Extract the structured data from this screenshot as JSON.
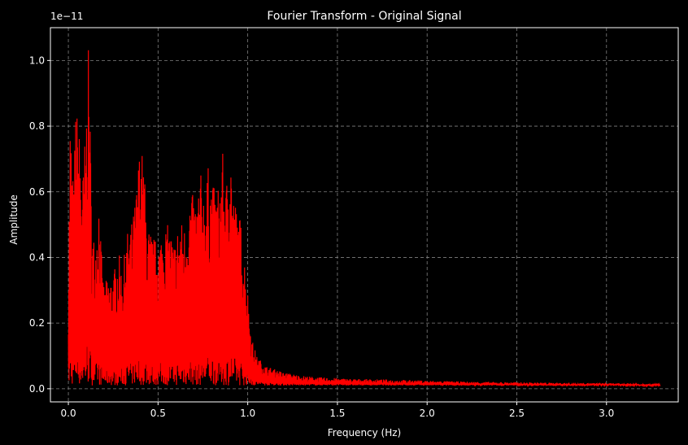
{
  "chart_data": {
    "type": "line",
    "title": "Fourier Transform - Original Signal",
    "xlabel": "Frequency (Hz)",
    "ylabel": "Amplitude",
    "y_scale_label": "1e−11",
    "xlim": [
      -0.1,
      3.4
    ],
    "ylim": [
      -0.04,
      1.1
    ],
    "y_multiplier": 1e-11,
    "x_ticks": [
      0.0,
      0.5,
      1.0,
      1.5,
      2.0,
      2.5,
      3.0
    ],
    "x_tick_labels": [
      "0.0",
      "0.5",
      "1.0",
      "1.5",
      "2.0",
      "2.5",
      "3.0"
    ],
    "y_ticks": [
      0.0,
      0.2,
      0.4,
      0.6,
      0.8,
      1.0
    ],
    "y_tick_labels": [
      "0.0",
      "0.2",
      "0.4",
      "0.6",
      "0.8",
      "1.0"
    ],
    "grid": true,
    "line_color": "#ff0000",
    "grid_color": "#808080",
    "background": "#000000",
    "series": [
      {
        "envelope_x": [
          0.0,
          0.01,
          0.02,
          0.03,
          0.04,
          0.06,
          0.08,
          0.1,
          0.11,
          0.12,
          0.13,
          0.15,
          0.17,
          0.19,
          0.2,
          0.22,
          0.25,
          0.28,
          0.3,
          0.33,
          0.36,
          0.38,
          0.4,
          0.42,
          0.44,
          0.46,
          0.48,
          0.5,
          0.53,
          0.56,
          0.59,
          0.62,
          0.65,
          0.68,
          0.71,
          0.74,
          0.76,
          0.78,
          0.8,
          0.82,
          0.84,
          0.86,
          0.88,
          0.9,
          0.92,
          0.94,
          0.96,
          0.98,
          1.0,
          1.02,
          1.05,
          1.1,
          1.2,
          1.3,
          1.4,
          1.6,
          1.8,
          2.0,
          2.2,
          2.5,
          2.8,
          3.0,
          3.3
        ],
        "envelope_max": [
          0.3,
          0.85,
          0.72,
          0.6,
          0.88,
          0.8,
          0.65,
          0.84,
          1.06,
          0.9,
          0.5,
          0.45,
          0.6,
          0.35,
          0.32,
          0.34,
          0.35,
          0.42,
          0.36,
          0.48,
          0.52,
          0.62,
          0.76,
          0.7,
          0.5,
          0.48,
          0.46,
          0.45,
          0.5,
          0.5,
          0.45,
          0.52,
          0.5,
          0.6,
          0.58,
          0.66,
          0.6,
          0.68,
          0.64,
          0.6,
          0.63,
          0.72,
          0.62,
          0.8,
          0.6,
          0.55,
          0.52,
          0.42,
          0.3,
          0.16,
          0.1,
          0.07,
          0.05,
          0.04,
          0.035,
          0.03,
          0.028,
          0.025,
          0.022,
          0.02,
          0.018,
          0.017,
          0.015
        ]
      }
    ]
  }
}
